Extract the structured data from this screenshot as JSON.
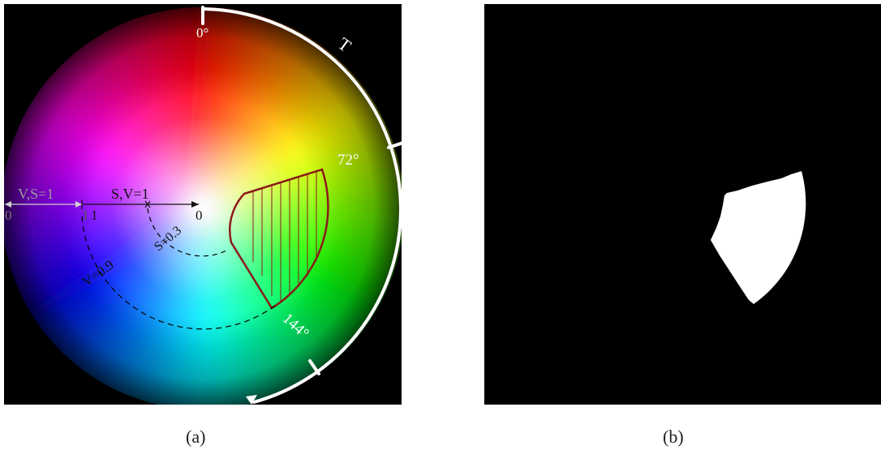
{
  "panel_a": {
    "caption": "(a)",
    "angle_labels": {
      "a0": "0°",
      "a72": "72°",
      "a144": "144°"
    },
    "t_label": "T",
    "axis_vs": {
      "label": "V,S=1",
      "end0": "0",
      "end1": "1"
    },
    "axis_sv": {
      "label": "S,V=1",
      "end1": "1",
      "end0": "0"
    },
    "s_value": "S=0.3",
    "v_value": "V=0.9",
    "colors": {
      "region_outline": "#8b1a1a",
      "arc": "#ffffff"
    }
  },
  "panel_b": {
    "caption": "(b)",
    "colors": {
      "mask": "#ffffff",
      "background": "#000000"
    }
  }
}
